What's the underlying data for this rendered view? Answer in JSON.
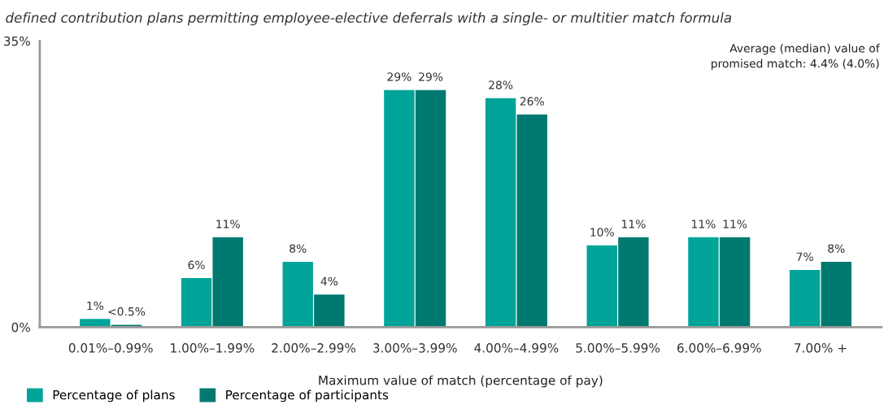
{
  "chart_data": {
    "type": "bar",
    "title": "defined contribution plans permitting employee-elective deferrals with a single- or multitier match formula",
    "xlabel": "Maximum value of match (percentage of pay)",
    "categories": [
      "0.01%–0.99%",
      "1.00%–1.99%",
      "2.00%–2.99%",
      "3.00%–3.99%",
      "4.00%–4.99%",
      "5.00%–5.99%",
      "6.00%–6.99%",
      "7.00% +"
    ],
    "series": [
      {
        "name": "Percentage of plans",
        "color": "#00a499",
        "values": [
          1,
          6,
          8,
          29,
          28,
          10,
          11,
          7
        ],
        "value_labels": [
          "1%",
          "6%",
          "8%",
          "29%",
          "28%",
          "10%",
          "11%",
          "7%"
        ]
      },
      {
        "name": "Percentage of participants",
        "color": "#007a70",
        "values": [
          0.3,
          11,
          4,
          29,
          26,
          11,
          11,
          8
        ],
        "value_labels": [
          "<0.5%",
          "11%",
          "4%",
          "29%",
          "26%",
          "11%",
          "11%",
          "8%"
        ]
      }
    ],
    "ylim": [
      0,
      35
    ],
    "yticks": [
      {
        "value": 0,
        "label": "0%"
      },
      {
        "value": 35,
        "label": "35%"
      }
    ],
    "annotations": [
      "Average (median) value of\npromised match: 4.4% (4.0%)"
    ],
    "grid": false,
    "legend": "bottom left"
  }
}
